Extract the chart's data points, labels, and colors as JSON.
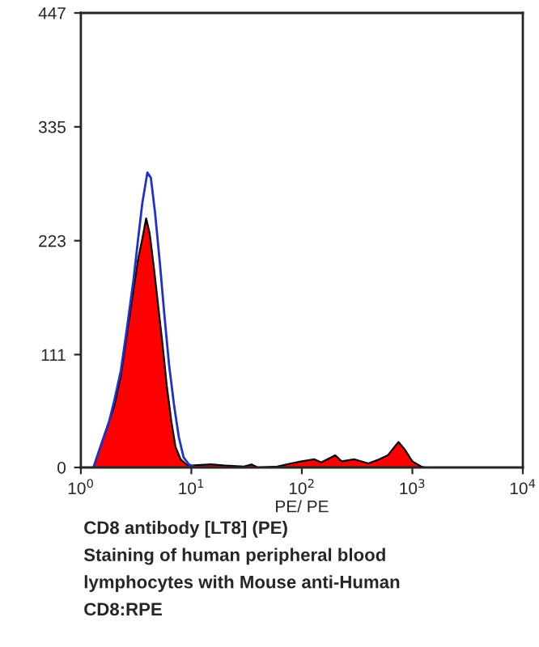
{
  "chart_data": {
    "type": "area",
    "xlabel": "PE/ PE",
    "log": "x",
    "xlim": [
      1,
      10000
    ],
    "ylim": [
      0,
      447
    ],
    "xticks": [
      {
        "value": 1,
        "label": "10$^{0}$"
      },
      {
        "value": 10,
        "label": "10$^{1}$"
      },
      {
        "value": 100,
        "label": "10$^{2}$"
      },
      {
        "value": 1000,
        "label": "10$^{3}$"
      },
      {
        "value": 10000,
        "label": "10$^{4}$"
      }
    ],
    "yticks": [
      0,
      111,
      223,
      335,
      447
    ],
    "grid": false,
    "legend": false,
    "series": [
      {
        "color": "#ff0000",
        "x": [
          1.3,
          1.5,
          1.8,
          2.0,
          2.3,
          2.6,
          3.0,
          3.3,
          3.6,
          3.9,
          4.2,
          4.6,
          5.0,
          5.5,
          6.0,
          6.6,
          7.2,
          8.0,
          9.0,
          10,
          15,
          20,
          30,
          35,
          40,
          60,
          80,
          100,
          130,
          150,
          200,
          230,
          300,
          400,
          500,
          600,
          750,
          850,
          1000,
          1200,
          1300
        ],
        "values": [
          0,
          20,
          45,
          60,
          90,
          130,
          175,
          205,
          225,
          245,
          230,
          195,
          160,
          120,
          80,
          45,
          20,
          8,
          3,
          2,
          3,
          2,
          1,
          3,
          0,
          1,
          4,
          6,
          8,
          5,
          12,
          6,
          8,
          4,
          8,
          12,
          25,
          18,
          6,
          1,
          0
        ]
      },
      {
        "type": "line",
        "color": "#1f2fd0",
        "x": [
          1.3,
          1.5,
          1.8,
          2.0,
          2.3,
          2.6,
          3.0,
          3.3,
          3.6,
          4.0,
          4.3,
          4.7,
          5.2,
          5.7,
          6.3,
          7.0,
          7.7,
          8.5,
          9.5,
          11
        ],
        "values": [
          0,
          20,
          45,
          65,
          95,
          135,
          185,
          225,
          260,
          290,
          285,
          250,
          200,
          150,
          100,
          60,
          30,
          10,
          3,
          0
        ]
      }
    ],
    "annotations": [
      "CD8 antibody [LT8] (PE)",
      "Staining of human peripheral blood",
      "lymphocytes with Mouse anti-Human",
      "CD8:RPE"
    ]
  }
}
